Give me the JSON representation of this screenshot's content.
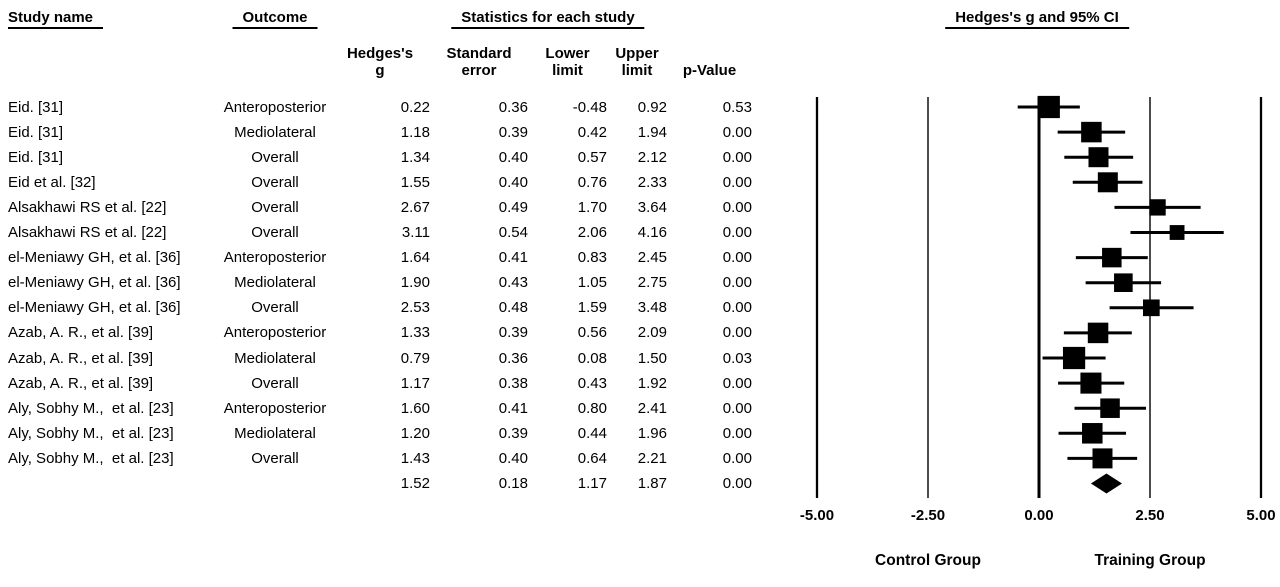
{
  "table": {
    "headers": {
      "study": "Study name",
      "outcome": "Outcome",
      "stats_group": "Statistics for each study",
      "g_line1": "Hedges's",
      "g_line2": "g",
      "se_line1": "Standard",
      "se_line2": "error",
      "lower_line1": "Lower",
      "lower_line2": "limit",
      "upper_line1": "Upper",
      "upper_line2": "limit",
      "p": "p-Value"
    }
  },
  "chart_data": {
    "type": "scatter",
    "subtype": "forest-plot-meta-analysis",
    "title": "Hedges's g and 95% CI",
    "effect_measure": "Hedges's g",
    "xlim": [
      -5,
      5
    ],
    "x_ticks": [
      -5,
      -2.5,
      0,
      2.5,
      5
    ],
    "x_tick_labels": [
      "-5.00",
      "-2.50",
      "0.00",
      "2.50",
      "5.00"
    ],
    "xlabel_left": "Control Group",
    "xlabel_right": "Training Group",
    "grid": "vertical-reference-lines",
    "marker_color": "#000000",
    "studies": [
      {
        "study": "Eid. [31]",
        "outcome": "Anteroposterior",
        "g": 0.22,
        "se": 0.36,
        "lower": -0.48,
        "upper": 0.92,
        "p": 0.53
      },
      {
        "study": "Eid. [31]",
        "outcome": "Mediolateral",
        "g": 1.18,
        "se": 0.39,
        "lower": 0.42,
        "upper": 1.94,
        "p": 0.0
      },
      {
        "study": "Eid. [31]",
        "outcome": "Overall",
        "g": 1.34,
        "se": 0.4,
        "lower": 0.57,
        "upper": 2.12,
        "p": 0.0
      },
      {
        "study": "Eid et al. [32]",
        "outcome": "Overall",
        "g": 1.55,
        "se": 0.4,
        "lower": 0.76,
        "upper": 2.33,
        "p": 0.0
      },
      {
        "study": "Alsakhawi RS et al. [22]",
        "outcome": "Overall",
        "g": 2.67,
        "se": 0.49,
        "lower": 1.7,
        "upper": 3.64,
        "p": 0.0
      },
      {
        "study": "Alsakhawi RS et al. [22]",
        "outcome": "Overall",
        "g": 3.11,
        "se": 0.54,
        "lower": 2.06,
        "upper": 4.16,
        "p": 0.0
      },
      {
        "study": "el-Meniawy GH, et al. [36]",
        "outcome": "Anteroposterior",
        "g": 1.64,
        "se": 0.41,
        "lower": 0.83,
        "upper": 2.45,
        "p": 0.0
      },
      {
        "study": "el-Meniawy GH, et al. [36]",
        "outcome": "Mediolateral",
        "g": 1.9,
        "se": 0.43,
        "lower": 1.05,
        "upper": 2.75,
        "p": 0.0
      },
      {
        "study": "el-Meniawy GH, et al. [36]",
        "outcome": "Overall",
        "g": 2.53,
        "se": 0.48,
        "lower": 1.59,
        "upper": 3.48,
        "p": 0.0
      },
      {
        "study": "Azab, A. R., et al. [39]",
        "outcome": "Anteroposterior",
        "g": 1.33,
        "se": 0.39,
        "lower": 0.56,
        "upper": 2.09,
        "p": 0.0
      },
      {
        "study": "Azab, A. R., et al. [39]",
        "outcome": "Mediolateral",
        "g": 0.79,
        "se": 0.36,
        "lower": 0.08,
        "upper": 1.5,
        "p": 0.03
      },
      {
        "study": "Azab, A. R., et al. [39]",
        "outcome": "Overall",
        "g": 1.17,
        "se": 0.38,
        "lower": 0.43,
        "upper": 1.92,
        "p": 0.0
      },
      {
        "study": "Aly, Sobhy M.,  et al. [23]",
        "outcome": "Anteroposterior",
        "g": 1.6,
        "se": 0.41,
        "lower": 0.8,
        "upper": 2.41,
        "p": 0.0
      },
      {
        "study": "Aly, Sobhy M.,  et al. [23]",
        "outcome": "Mediolateral",
        "g": 1.2,
        "se": 0.39,
        "lower": 0.44,
        "upper": 1.96,
        "p": 0.0
      },
      {
        "study": "Aly, Sobhy M.,  et al. [23]",
        "outcome": "Overall",
        "g": 1.43,
        "se": 0.4,
        "lower": 0.64,
        "upper": 2.21,
        "p": 0.0
      }
    ],
    "summary": {
      "study": "",
      "outcome": "",
      "g": 1.52,
      "se": 0.18,
      "lower": 1.17,
      "upper": 1.87,
      "p": 0.0,
      "marker": "diamond"
    }
  }
}
